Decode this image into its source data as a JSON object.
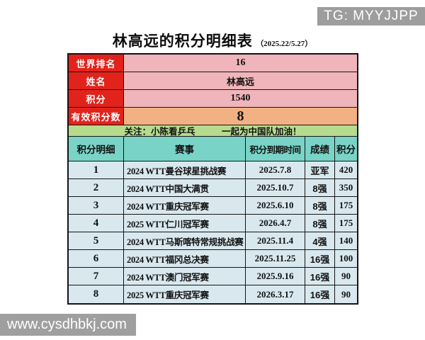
{
  "badge": {
    "text": "TG: MYYJJPP"
  },
  "title": {
    "main": "林高远的积分明细表",
    "date_note": "（2025.22/5.27）"
  },
  "info": {
    "rows": [
      {
        "label": "世界排名",
        "value": "16"
      },
      {
        "label": "姓名",
        "value": "林高远"
      },
      {
        "label": "积分",
        "value": "1540"
      },
      {
        "label": "有效积分数",
        "value": "8"
      }
    ]
  },
  "notice": {
    "text": "关注：小陈看乒乓　　　一起为中国队加油！"
  },
  "table": {
    "headers": [
      "积分明细",
      "赛事",
      "积分到期时间",
      "成绩",
      "积分"
    ],
    "rows": [
      {
        "no": "1",
        "event": "2024 WTT曼谷球星挑战赛",
        "expiry": "2025.7.8",
        "result": "亚军",
        "points": "420"
      },
      {
        "no": "2",
        "event": "2024 WTT中国大满贯",
        "expiry": "2025.10.7",
        "result": "8强",
        "points": "350"
      },
      {
        "no": "3",
        "event": "2024 WTT重庆冠军赛",
        "expiry": "2025.6.10",
        "result": "8强",
        "points": "175"
      },
      {
        "no": "4",
        "event": "2025 WTT仁川冠军赛",
        "expiry": "2026.4.7",
        "result": "8强",
        "points": "175"
      },
      {
        "no": "5",
        "event": "2024 WTT马斯喀特常规挑战赛",
        "expiry": "2025.11.4",
        "result": "4强",
        "points": "140"
      },
      {
        "no": "6",
        "event": "2024 WTT福冈总决赛",
        "expiry": "2025.11.25",
        "result": "16强",
        "points": "100"
      },
      {
        "no": "7",
        "event": "2024 WTT澳门冠军赛",
        "expiry": "2025.9.16",
        "result": "16强",
        "points": "90"
      },
      {
        "no": "8",
        "event": "2025 WTT重庆冠军赛",
        "expiry": "2026.3.17",
        "result": "16强",
        "points": "90"
      }
    ]
  },
  "watermark": {
    "ghost_text": "小陈看乒乓",
    "url_text": "www.cysdhbkj.com"
  },
  "colors": {
    "label_red": "#e2231c",
    "value_pink": "#f0b5ba",
    "valid_orange": "#f2b183",
    "notice_green": "#b6db8d",
    "header_teal": "#79d3c7",
    "row_blue": "#d9e8ef",
    "badge_gray": "#9d9d9d",
    "border_black": "#141414"
  },
  "chart_data": {
    "type": "table",
    "title": "林高远的积分明细表（2025.22/5.27）",
    "summary": {
      "世界排名": 16,
      "姓名": "林高远",
      "积分": 1540,
      "有效积分数": 8
    },
    "columns": [
      "积分明细",
      "赛事",
      "积分到期时间",
      "成绩",
      "积分"
    ],
    "rows": [
      [
        1,
        "2024 WTT曼谷球星挑战赛",
        "2025.7.8",
        "亚军",
        420
      ],
      [
        2,
        "2024 WTT中国大满贯",
        "2025.10.7",
        "8强",
        350
      ],
      [
        3,
        "2024 WTT重庆冠军赛",
        "2025.6.10",
        "8强",
        175
      ],
      [
        4,
        "2025 WTT仁川冠军赛",
        "2026.4.7",
        "8强",
        175
      ],
      [
        5,
        "2024 WTT马斯喀特常规挑战赛",
        "2025.11.4",
        "4强",
        140
      ],
      [
        6,
        "2024 WTT福冈总决赛",
        "2025.11.25",
        "16强",
        100
      ],
      [
        7,
        "2024 WTT澳门冠军赛",
        "2025.9.16",
        "16强",
        90
      ],
      [
        8,
        "2025 WTT重庆冠军赛",
        "2026.3.17",
        "16强",
        90
      ]
    ]
  }
}
